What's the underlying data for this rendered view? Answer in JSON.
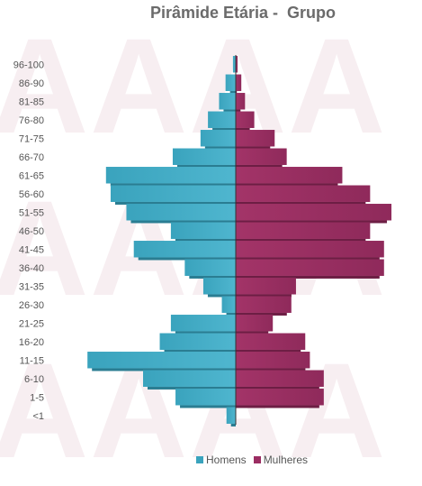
{
  "chart_data": {
    "type": "bar",
    "orientation": "horizontal-population-pyramid",
    "title": "Pirâmide Etária -  Grupo",
    "categories": [
      "96-100",
      "86-90",
      "81-85",
      "76-80",
      "71-75",
      "66-70",
      "61-65",
      "56-60",
      "51-55",
      "46-50",
      "41-45",
      "36-40",
      "31-35",
      "26-30",
      "21-25",
      "16-20",
      "11-15",
      "6-10",
      "1-5",
      "<1"
    ],
    "series": [
      {
        "name": "Homens",
        "color": "#3aa3bd",
        "values": [
          0.3,
          1.1,
          1.8,
          3.0,
          3.8,
          6.8,
          14.0,
          13.5,
          11.8,
          7.0,
          11.0,
          5.5,
          3.5,
          1.5,
          7.0,
          8.2,
          16.0,
          10.0,
          6.5,
          1.0
        ]
      },
      {
        "name": "Mulheres",
        "color": "#9b2d62",
        "values": [
          0.2,
          0.6,
          1.0,
          2.0,
          4.2,
          5.5,
          11.5,
          14.5,
          16.8,
          14.5,
          16.0,
          16.0,
          6.5,
          6.0,
          4.0,
          7.5,
          8.0,
          9.5,
          9.5,
          0.0
        ]
      }
    ],
    "legend_position": "bottom",
    "grid": false
  }
}
